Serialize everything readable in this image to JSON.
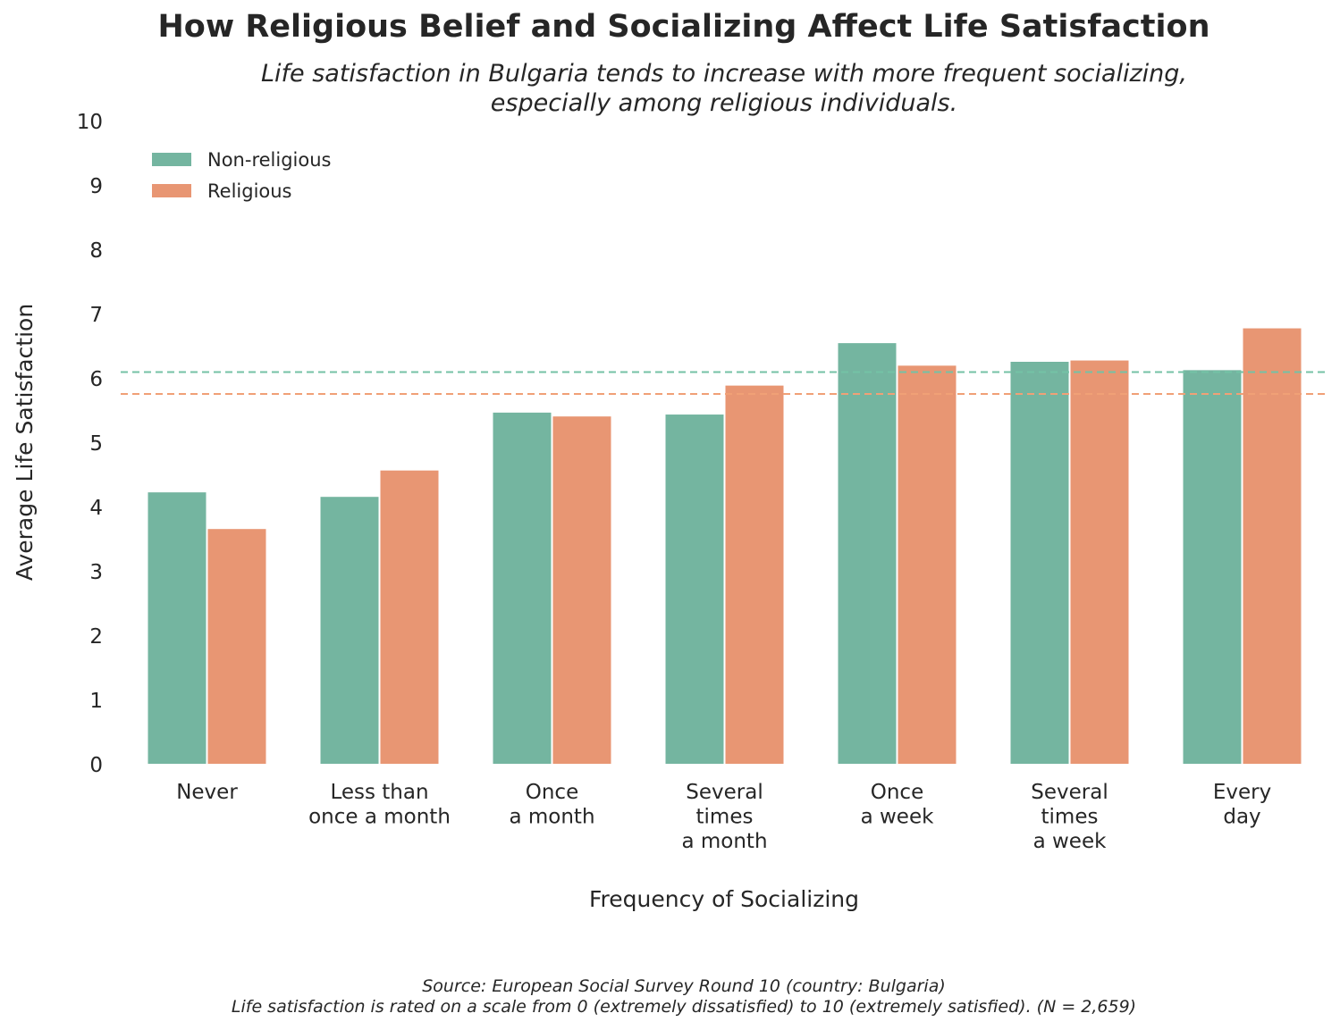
{
  "chart_data": {
    "type": "bar",
    "title": "How Religious Belief and Socializing Affect Life Satisfaction",
    "subtitle": [
      "Life satisfaction in Bulgaria tends to increase with more frequent socializing,",
      "especially among religious individuals."
    ],
    "xlabel": "Frequency of Socializing",
    "ylabel": "Average Life Satisfaction",
    "ylim": [
      0,
      10
    ],
    "yticks": [
      "0",
      "1",
      "2",
      "3",
      "4",
      "5",
      "6",
      "7",
      "8",
      "9",
      "10"
    ],
    "categories": [
      [
        "Never"
      ],
      [
        "Less than",
        "once a month"
      ],
      [
        "Once",
        "a month"
      ],
      [
        "Several",
        "times",
        "a month"
      ],
      [
        "Once",
        "a week"
      ],
      [
        "Several",
        "times",
        "a week"
      ],
      [
        "Every",
        "day"
      ]
    ],
    "series": [
      {
        "name": "Non-religious",
        "color": "#74b5a0",
        "values": [
          4.22,
          4.15,
          5.46,
          5.43,
          6.54,
          6.25,
          6.12
        ]
      },
      {
        "name": "Religious",
        "color": "#e89673",
        "values": [
          3.65,
          4.56,
          5.4,
          5.88,
          6.19,
          6.27,
          6.77
        ]
      }
    ],
    "reference_lines": [
      {
        "series": "Non-religious",
        "value": 6.09,
        "style": "dashed",
        "color": "#74c2a6"
      },
      {
        "series": "Religious",
        "value": 5.75,
        "style": "dashed",
        "color": "#f0a076"
      }
    ],
    "legend": {
      "placement": "top-left"
    },
    "grid": false,
    "source": [
      "Source: European Social Survey Round 10 (country: Bulgaria)",
      "Life satisfaction is rated on a scale from 0 (extremely dissatisfied) to 10 (extremely satisfied). (N = 2,659)"
    ]
  }
}
